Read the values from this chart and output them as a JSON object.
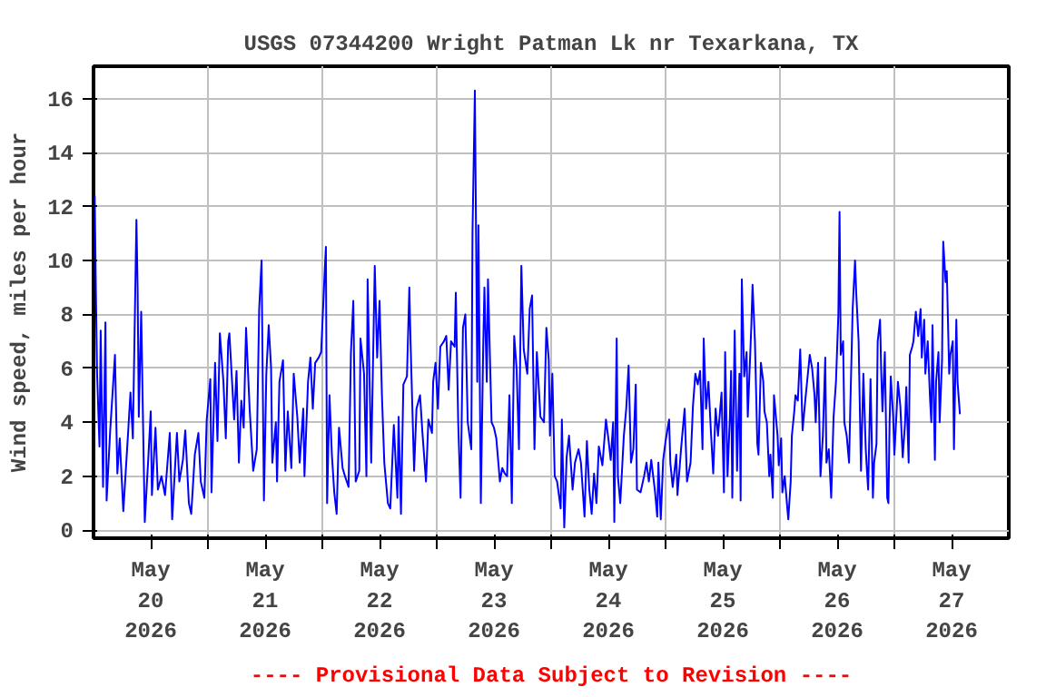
{
  "chart_data": {
    "type": "line",
    "title": "USGS 07344200 Wright Patman Lk nr Texarkana, TX",
    "ylabel": "Wind speed, miles per hour",
    "annotations": [
      "---- Provisional Data Subject to Revision ----"
    ],
    "xlim": [
      "2026-05-20T00:00",
      "2026-05-28T00:00"
    ],
    "ylim": [
      -0.3,
      17.2
    ],
    "yticks": [
      0,
      2,
      4,
      6,
      8,
      10,
      12,
      14,
      16
    ],
    "xticks": [
      {
        "value": "2026-05-20T12:00",
        "label": "May\n20\n2026"
      },
      {
        "value": "2026-05-21T00:00",
        "label": null
      },
      {
        "value": "2026-05-21T12:00",
        "label": "May\n21\n2026"
      },
      {
        "value": "2026-05-22T00:00",
        "label": null
      },
      {
        "value": "2026-05-22T12:00",
        "label": "May\n22\n2026"
      },
      {
        "value": "2026-05-23T00:00",
        "label": null
      },
      {
        "value": "2026-05-23T12:00",
        "label": "May\n23\n2026"
      },
      {
        "value": "2026-05-24T00:00",
        "label": null
      },
      {
        "value": "2026-05-24T12:00",
        "label": "May\n24\n2026"
      },
      {
        "value": "2026-05-25T00:00",
        "label": null
      },
      {
        "value": "2026-05-25T12:00",
        "label": "May\n25\n2026"
      },
      {
        "value": "2026-05-26T00:00",
        "label": null
      },
      {
        "value": "2026-05-26T12:00",
        "label": "May\n26\n2026"
      },
      {
        "value": "2026-05-27T00:00",
        "label": null
      },
      {
        "value": "2026-05-27T12:00",
        "label": "May\n27\n2026"
      }
    ],
    "grid": true,
    "series": [
      {
        "color": "#0000ff",
        "x": [
          "2026-05-20T00:15",
          "2026-05-20T00:30",
          "2026-05-20T00:45",
          "2026-05-20T01:15",
          "2026-05-20T01:30",
          "2026-05-20T02:00",
          "2026-05-20T02:30",
          "2026-05-20T02:45",
          "2026-05-20T03:30",
          "2026-05-20T04:30",
          "2026-05-20T05:00",
          "2026-05-20T05:30",
          "2026-05-20T06:15",
          "2026-05-20T07:15",
          "2026-05-20T07:45",
          "2026-05-20T08:15",
          "2026-05-20T09:00",
          "2026-05-20T09:15",
          "2026-05-20T09:30",
          "2026-05-20T10:00",
          "2026-05-20T10:30",
          "2026-05-20T10:45",
          "2026-05-20T11:30",
          "2026-05-20T12:00",
          "2026-05-20T12:15",
          "2026-05-20T13:00",
          "2026-05-20T13:30",
          "2026-05-20T14:15",
          "2026-05-20T15:00",
          "2026-05-20T16:00",
          "2026-05-20T16:30",
          "2026-05-20T17:30",
          "2026-05-20T18:00",
          "2026-05-20T18:45",
          "2026-05-20T19:15",
          "2026-05-20T20:00",
          "2026-05-20T20:30",
          "2026-05-20T21:15",
          "2026-05-20T22:00",
          "2026-05-20T22:30",
          "2026-05-20T23:15",
          "2026-05-20T23:45",
          "2026-05-21T00:30",
          "2026-05-21T00:45",
          "2026-05-21T01:30",
          "2026-05-21T02:00",
          "2026-05-21T02:30",
          "2026-05-21T03:15",
          "2026-05-21T03:45",
          "2026-05-21T04:15",
          "2026-05-21T04:30",
          "2026-05-21T05:30",
          "2026-05-21T06:00",
          "2026-05-21T06:30",
          "2026-05-21T07:00",
          "2026-05-21T07:30",
          "2026-05-21T08:00",
          "2026-05-21T08:45",
          "2026-05-21T09:30",
          "2026-05-21T10:15",
          "2026-05-21T10:45",
          "2026-05-21T11:15",
          "2026-05-21T11:45",
          "2026-05-21T12:15",
          "2026-05-21T12:45",
          "2026-05-21T13:15",
          "2026-05-21T13:30",
          "2026-05-21T14:15",
          "2026-05-21T14:30",
          "2026-05-21T15:00",
          "2026-05-21T15:45",
          "2026-05-21T16:15",
          "2026-05-21T16:45",
          "2026-05-21T17:30",
          "2026-05-21T18:00",
          "2026-05-21T18:45",
          "2026-05-21T19:15",
          "2026-05-21T20:00",
          "2026-05-21T20:15",
          "2026-05-21T21:00",
          "2026-05-21T21:30",
          "2026-05-21T22:00",
          "2026-05-21T22:30",
          "2026-05-21T23:15",
          "2026-05-21T23:45",
          "2026-05-22T00:30",
          "2026-05-22T00:45",
          "2026-05-22T01:00",
          "2026-05-22T01:30",
          "2026-05-22T02:00",
          "2026-05-22T02:30",
          "2026-05-22T03:00",
          "2026-05-22T03:30",
          "2026-05-22T04:15",
          "2026-05-22T04:45",
          "2026-05-22T05:30",
          "2026-05-22T06:00",
          "2026-05-22T06:30",
          "2026-05-22T07:00",
          "2026-05-22T07:45",
          "2026-05-22T08:00",
          "2026-05-22T08:45",
          "2026-05-22T09:15",
          "2026-05-22T09:30",
          "2026-05-22T10:15",
          "2026-05-22T11:00",
          "2026-05-22T11:30",
          "2026-05-22T12:00",
          "2026-05-22T12:30",
          "2026-05-22T13:00",
          "2026-05-22T13:45",
          "2026-05-22T14:15",
          "2026-05-22T15:00",
          "2026-05-22T15:45",
          "2026-05-22T16:00",
          "2026-05-22T16:30",
          "2026-05-22T17:00",
          "2026-05-22T17:45",
          "2026-05-22T18:15",
          "2026-05-22T18:30",
          "2026-05-22T19:15",
          "2026-05-22T19:45",
          "2026-05-22T20:30",
          "2026-05-22T21:00",
          "2026-05-22T21:45",
          "2026-05-22T22:15",
          "2026-05-22T23:00",
          "2026-05-22T23:15",
          "2026-05-22T23:45",
          "2026-05-23T00:15",
          "2026-05-23T00:45",
          "2026-05-23T01:30",
          "2026-05-23T02:00",
          "2026-05-23T02:30",
          "2026-05-23T03:00",
          "2026-05-23T03:45",
          "2026-05-23T04:00",
          "2026-05-23T04:30",
          "2026-05-23T05:00",
          "2026-05-23T05:30",
          "2026-05-23T06:00",
          "2026-05-23T06:30",
          "2026-05-23T07:15",
          "2026-05-23T07:30",
          "2026-05-23T08:00",
          "2026-05-23T08:30",
          "2026-05-23T08:45",
          "2026-05-23T09:15",
          "2026-05-23T09:45",
          "2026-05-23T10:00",
          "2026-05-23T10:30",
          "2026-05-23T10:45",
          "2026-05-23T11:30",
          "2026-05-23T12:00",
          "2026-05-23T12:30",
          "2026-05-23T13:15",
          "2026-05-23T13:45",
          "2026-05-23T14:15",
          "2026-05-23T14:45",
          "2026-05-23T15:15",
          "2026-05-23T15:45",
          "2026-05-23T16:15",
          "2026-05-23T16:45",
          "2026-05-23T17:15",
          "2026-05-23T17:45",
          "2026-05-23T18:15",
          "2026-05-23T19:00",
          "2026-05-23T19:30",
          "2026-05-23T20:00",
          "2026-05-23T20:30",
          "2026-05-23T21:00",
          "2026-05-23T21:45",
          "2026-05-23T22:30",
          "2026-05-23T23:00",
          "2026-05-23T23:30",
          "2026-05-23T23:45",
          "2026-05-24T00:15",
          "2026-05-24T00:45",
          "2026-05-24T01:15",
          "2026-05-24T02:00",
          "2026-05-24T02:15",
          "2026-05-24T02:45",
          "2026-05-24T03:15",
          "2026-05-24T03:45",
          "2026-05-24T04:30",
          "2026-05-24T05:00",
          "2026-05-24T05:45",
          "2026-05-24T06:15",
          "2026-05-24T07:00",
          "2026-05-24T07:30",
          "2026-05-24T08:00",
          "2026-05-24T08:30",
          "2026-05-24T09:00",
          "2026-05-24T09:30",
          "2026-05-24T10:00",
          "2026-05-24T10:45",
          "2026-05-24T11:30",
          "2026-05-24T12:00",
          "2026-05-24T12:30",
          "2026-05-24T13:00",
          "2026-05-24T13:15",
          "2026-05-24T13:45",
          "2026-05-24T14:00",
          "2026-05-24T14:30",
          "2026-05-24T15:15",
          "2026-05-24T15:45",
          "2026-05-24T16:15",
          "2026-05-24T16:45",
          "2026-05-24T17:15",
          "2026-05-24T17:45",
          "2026-05-24T18:00",
          "2026-05-24T18:45",
          "2026-05-24T19:30",
          "2026-05-24T20:00",
          "2026-05-24T20:30",
          "2026-05-24T21:00",
          "2026-05-24T21:45",
          "2026-05-24T22:15",
          "2026-05-24T22:30",
          "2026-05-24T23:00",
          "2026-05-24T23:30",
          "2026-05-25T00:00",
          "2026-05-25T00:45",
          "2026-05-25T01:00",
          "2026-05-25T01:30",
          "2026-05-25T02:15",
          "2026-05-25T02:30",
          "2026-05-25T03:15",
          "2026-05-25T04:00",
          "2026-05-25T04:30",
          "2026-05-25T05:15",
          "2026-05-25T05:45",
          "2026-05-25T06:15",
          "2026-05-25T06:45",
          "2026-05-25T07:15",
          "2026-05-25T07:45",
          "2026-05-25T08:00",
          "2026-05-25T08:30",
          "2026-05-25T09:00",
          "2026-05-25T09:30",
          "2026-05-25T10:00",
          "2026-05-25T10:30",
          "2026-05-25T11:00",
          "2026-05-25T11:45",
          "2026-05-25T12:15",
          "2026-05-25T12:30",
          "2026-05-25T13:00",
          "2026-05-25T13:30",
          "2026-05-25T13:45",
          "2026-05-25T14:00",
          "2026-05-25T14:30",
          "2026-05-25T15:00",
          "2026-05-25T15:30",
          "2026-05-25T15:45",
          "2026-05-25T16:00",
          "2026-05-25T16:30",
          "2026-05-25T17:00",
          "2026-05-25T17:15",
          "2026-05-25T18:00",
          "2026-05-25T18:15",
          "2026-05-25T18:45",
          "2026-05-25T19:15",
          "2026-05-25T19:30",
          "2026-05-25T20:00",
          "2026-05-25T20:30",
          "2026-05-25T20:45",
          "2026-05-25T21:15",
          "2026-05-25T21:45",
          "2026-05-25T22:00",
          "2026-05-25T22:30",
          "2026-05-25T22:45",
          "2026-05-25T23:30",
          "2026-05-25T23:45",
          "2026-05-26T00:15",
          "2026-05-26T00:30",
          "2026-05-26T01:00",
          "2026-05-26T01:30",
          "2026-05-26T01:45",
          "2026-05-26T02:15",
          "2026-05-26T02:30",
          "2026-05-26T03:00",
          "2026-05-26T03:15",
          "2026-05-26T03:45",
          "2026-05-26T04:15",
          "2026-05-26T04:45",
          "2026-05-26T05:15",
          "2026-05-26T05:45",
          "2026-05-26T06:15",
          "2026-05-26T06:45",
          "2026-05-26T07:15",
          "2026-05-26T07:30",
          "2026-05-26T08:00",
          "2026-05-26T08:30",
          "2026-05-26T09:00",
          "2026-05-26T09:30",
          "2026-05-26T09:45",
          "2026-05-26T10:15",
          "2026-05-26T10:45",
          "2026-05-26T11:15",
          "2026-05-26T11:45",
          "2026-05-26T12:15",
          "2026-05-26T12:30",
          "2026-05-26T12:45",
          "2026-05-26T13:15",
          "2026-05-26T13:30",
          "2026-05-26T14:00",
          "2026-05-26T14:30",
          "2026-05-26T14:45",
          "2026-05-26T15:15",
          "2026-05-26T15:45",
          "2026-05-26T16:00",
          "2026-05-26T16:30",
          "2026-05-26T17:00",
          "2026-05-26T17:30",
          "2026-05-26T18:00",
          "2026-05-26T18:15",
          "2026-05-26T18:30",
          "2026-05-26T19:00",
          "2026-05-26T19:30",
          "2026-05-26T19:45",
          "2026-05-26T20:15",
          "2026-05-26T20:30",
          "2026-05-26T21:00",
          "2026-05-26T21:15",
          "2026-05-26T21:30",
          "2026-05-26T22:00",
          "2026-05-26T22:15",
          "2026-05-26T22:30",
          "2026-05-26T22:45",
          "2026-05-26T23:00",
          "2026-05-26T23:15",
          "2026-05-26T23:45",
          "2026-05-27T00:00",
          "2026-05-27T00:30",
          "2026-05-27T00:45",
          "2026-05-27T01:15",
          "2026-05-27T01:45",
          "2026-05-27T02:15",
          "2026-05-27T02:30",
          "2026-05-27T03:00",
          "2026-05-27T03:15",
          "2026-05-27T03:45",
          "2026-05-27T04:00",
          "2026-05-27T04:30",
          "2026-05-27T05:00",
          "2026-05-27T05:30",
          "2026-05-27T05:45",
          "2026-05-27T06:15",
          "2026-05-27T06:30",
          "2026-05-27T07:00",
          "2026-05-27T07:30",
          "2026-05-27T07:45",
          "2026-05-27T08:00",
          "2026-05-27T08:30",
          "2026-05-27T08:45",
          "2026-05-27T09:15",
          "2026-05-27T09:30",
          "2026-05-27T10:00",
          "2026-05-27T10:15",
          "2026-05-27T10:45",
          "2026-05-27T11:00",
          "2026-05-27T11:30",
          "2026-05-27T11:45",
          "2026-05-27T12:15",
          "2026-05-27T12:30",
          "2026-05-27T13:00",
          "2026-05-27T13:15",
          "2026-05-27T13:45"
        ],
        "values": [
          12.4,
          8.8,
          5.8,
          3.1,
          7.4,
          1.6,
          7.7,
          1.1,
          3.7,
          6.5,
          2.1,
          3.4,
          0.7,
          3.6,
          5.1,
          3.4,
          11.5,
          9.0,
          4.2,
          8.1,
          2.8,
          0.3,
          2.7,
          4.4,
          1.3,
          3.8,
          1.5,
          2.0,
          1.3,
          3.6,
          0.4,
          3.6,
          1.8,
          2.6,
          3.7,
          1.0,
          0.6,
          2.8,
          3.6,
          1.8,
          1.2,
          4.1,
          5.6,
          1.4,
          6.2,
          3.3,
          7.3,
          5.5,
          3.4,
          7.0,
          7.3,
          4.1,
          5.9,
          2.5,
          4.8,
          3.8,
          7.5,
          4.5,
          2.2,
          3.0,
          8.2,
          10.0,
          1.1,
          5.8,
          7.6,
          6.0,
          2.5,
          4.0,
          1.8,
          5.5,
          6.3,
          2.2,
          4.4,
          2.3,
          5.8,
          4.2,
          2.5,
          4.5,
          2.0,
          5.5,
          6.4,
          4.5,
          6.2,
          6.4,
          6.6,
          9.6,
          10.5,
          1.0,
          5.0,
          2.8,
          1.4,
          0.6,
          3.8,
          2.3,
          2.0,
          1.6,
          6.6,
          8.5,
          1.8,
          2.2,
          7.1,
          5.8,
          2.0,
          9.3,
          2.5,
          9.8,
          6.4,
          8.5,
          5.0,
          2.5,
          1.0,
          0.8,
          3.9,
          1.2,
          4.2,
          0.6,
          5.4,
          5.7,
          9.0,
          7.0,
          2.2,
          4.5,
          5.0,
          3.6,
          1.8,
          4.1,
          3.6,
          5.5,
          6.2,
          4.5,
          6.8,
          7.0,
          7.2,
          5.2,
          7.0,
          6.8,
          8.8,
          4.0,
          1.2,
          7.5,
          8.0,
          4.0,
          3.0,
          11.0,
          16.3,
          5.5,
          11.3,
          1.0,
          6.8,
          9.0,
          5.5,
          9.3,
          4.0,
          3.8,
          3.4,
          1.8,
          2.3,
          2.1,
          2.0,
          5.0,
          1.0,
          7.2,
          6.0,
          3.0,
          9.8,
          6.7,
          5.8,
          8.2,
          8.7,
          3.0,
          6.6,
          4.2,
          4.0,
          7.5,
          6.3,
          3.5,
          5.8,
          2.0,
          1.8,
          0.8,
          4.1,
          0.1,
          2.7,
          3.5,
          1.5,
          2.5,
          3.0,
          2.5,
          0.5,
          3.3,
          1.5,
          0.6,
          2.1,
          1.0,
          3.1,
          2.4,
          4.1,
          3.4,
          2.6,
          4.0,
          0.3,
          7.1,
          2.0,
          1.0,
          3.5,
          4.5,
          6.1,
          2.5,
          3.0,
          5.4,
          1.5,
          1.4,
          2.0,
          2.5,
          1.8,
          2.6,
          1.5,
          0.5,
          2.5,
          0.4,
          2.6,
          3.3,
          4.1,
          2.5,
          1.6,
          2.8,
          1.3,
          3.0,
          4.5,
          1.8,
          2.5,
          4.6,
          5.8,
          5.4,
          5.9,
          3.0,
          7.1,
          4.5,
          5.5,
          3.7,
          2.1,
          4.5,
          3.5,
          5.1,
          1.4,
          6.6,
          2.0,
          4.2,
          5.9,
          1.2,
          7.4,
          2.2,
          5.8,
          1.1,
          9.3,
          5.7,
          6.6,
          4.2,
          7.6,
          9.1,
          7.0,
          3.2,
          2.8,
          6.2,
          5.5,
          4.4,
          4.0,
          2.0,
          2.8,
          1.2,
          5.0,
          3.5,
          2.4,
          3.4,
          1.4,
          2.0,
          0.9,
          0.4,
          1.8,
          3.5,
          4.4,
          5.0,
          4.8,
          6.7,
          3.7,
          4.7,
          5.6,
          6.5,
          6.0,
          5.0,
          4.0,
          6.2,
          2.0,
          3.5,
          6.4,
          2.5,
          3.0,
          1.2,
          4.2,
          5.5,
          8.0,
          11.8,
          6.5,
          7.0,
          4.0,
          3.5,
          2.5,
          4.5,
          8.2,
          10.0,
          8.8,
          7.0,
          2.2,
          5.8,
          3.0,
          2.2,
          1.5,
          5.6,
          1.2,
          2.5,
          3.2,
          7.0,
          7.8,
          5.8,
          4.4,
          6.6,
          3.9,
          1.2,
          1.0,
          4.0,
          5.7,
          4.2,
          2.8,
          4.5,
          5.5,
          4.6,
          2.7,
          4.0,
          5.3,
          2.5,
          6.5,
          6.8,
          7.0,
          8.1,
          7.2,
          8.2,
          6.4,
          7.8,
          5.8,
          7.0,
          4.8,
          4.0,
          7.6,
          2.6,
          5.5,
          6.6,
          4.0,
          6.3,
          10.7,
          9.2,
          9.6,
          5.8,
          6.5,
          7.0,
          3.0,
          7.8,
          5.5,
          4.3
        ]
      }
    ]
  }
}
